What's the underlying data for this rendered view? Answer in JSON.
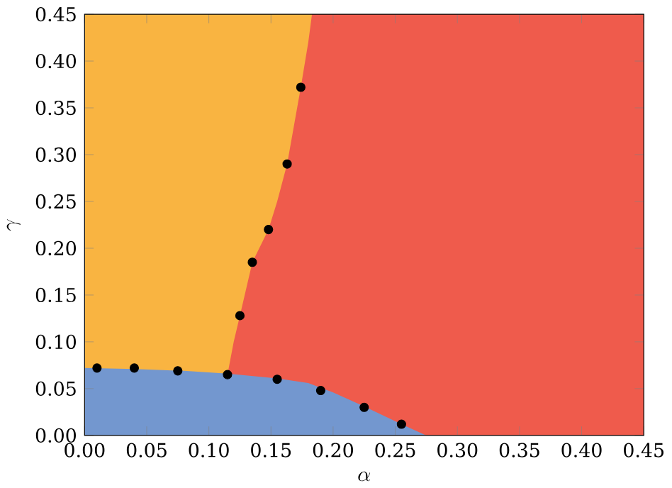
{
  "chart_data": {
    "type": "area",
    "xlabel": "\\alpha",
    "ylabel": "\\gamma",
    "xlim": [
      0,
      0.45
    ],
    "ylim": [
      0,
      0.45
    ],
    "xticks": [
      {
        "value": 0,
        "label": "0.00"
      },
      {
        "value": 0.05,
        "label": "0.05"
      },
      {
        "value": 0.1,
        "label": "0.10"
      },
      {
        "value": 0.15,
        "label": "0.15"
      },
      {
        "value": 0.2,
        "label": "0.20"
      },
      {
        "value": 0.25,
        "label": "0.25"
      },
      {
        "value": 0.3,
        "label": "0.30"
      },
      {
        "value": 0.35,
        "label": "0.35"
      },
      {
        "value": 0.4,
        "label": "0.40"
      },
      {
        "value": 0.45,
        "label": "0.45"
      }
    ],
    "yticks": [
      {
        "value": 0,
        "label": "0.00"
      },
      {
        "value": 0.05,
        "label": "0.05"
      },
      {
        "value": 0.1,
        "label": "0.10"
      },
      {
        "value": 0.15,
        "label": "0.15"
      },
      {
        "value": 0.2,
        "label": "0.20"
      },
      {
        "value": 0.25,
        "label": "0.25"
      },
      {
        "value": 0.3,
        "label": "0.30"
      },
      {
        "value": 0.35,
        "label": "0.35"
      },
      {
        "value": 0.4,
        "label": "0.40"
      },
      {
        "value": 0.45,
        "label": "0.45"
      }
    ],
    "series": [
      {
        "color": "#f9b441",
        "x": [
          0,
          0.185
        ],
        "values": [
          0.45,
          0.45
        ]
      },
      {
        "color": "#ef5b4c",
        "x": [
          0.115,
          0.115,
          0.12,
          0.125,
          0.135,
          0.148,
          0.155,
          0.163,
          0.174,
          0.18,
          0.183,
          0.45
        ],
        "values": [
          0,
          0.065,
          0.1,
          0.128,
          0.185,
          0.22,
          0.25,
          0.29,
          0.372,
          0.42,
          0.45,
          0.45
        ]
      },
      {
        "color": "#7397cf",
        "x": [
          0,
          0.04,
          0.08,
          0.115,
          0.155,
          0.18,
          0.2,
          0.225,
          0.255,
          0.275
        ],
        "values": [
          0.072,
          0.071,
          0.069,
          0.066,
          0.061,
          0.056,
          0.046,
          0.031,
          0.012,
          0
        ]
      },
      {
        "type": "scatter",
        "color": "#000000",
        "marker": "circle",
        "x": [
          0.01,
          0.04,
          0.075,
          0.115,
          0.155,
          0.19,
          0.225,
          0.255,
          0.125,
          0.135,
          0.148,
          0.163,
          0.174
        ],
        "values": [
          0.072,
          0.072,
          0.069,
          0.065,
          0.06,
          0.048,
          0.03,
          0.012,
          0.128,
          0.185,
          0.22,
          0.29,
          0.372
        ]
      }
    ]
  }
}
